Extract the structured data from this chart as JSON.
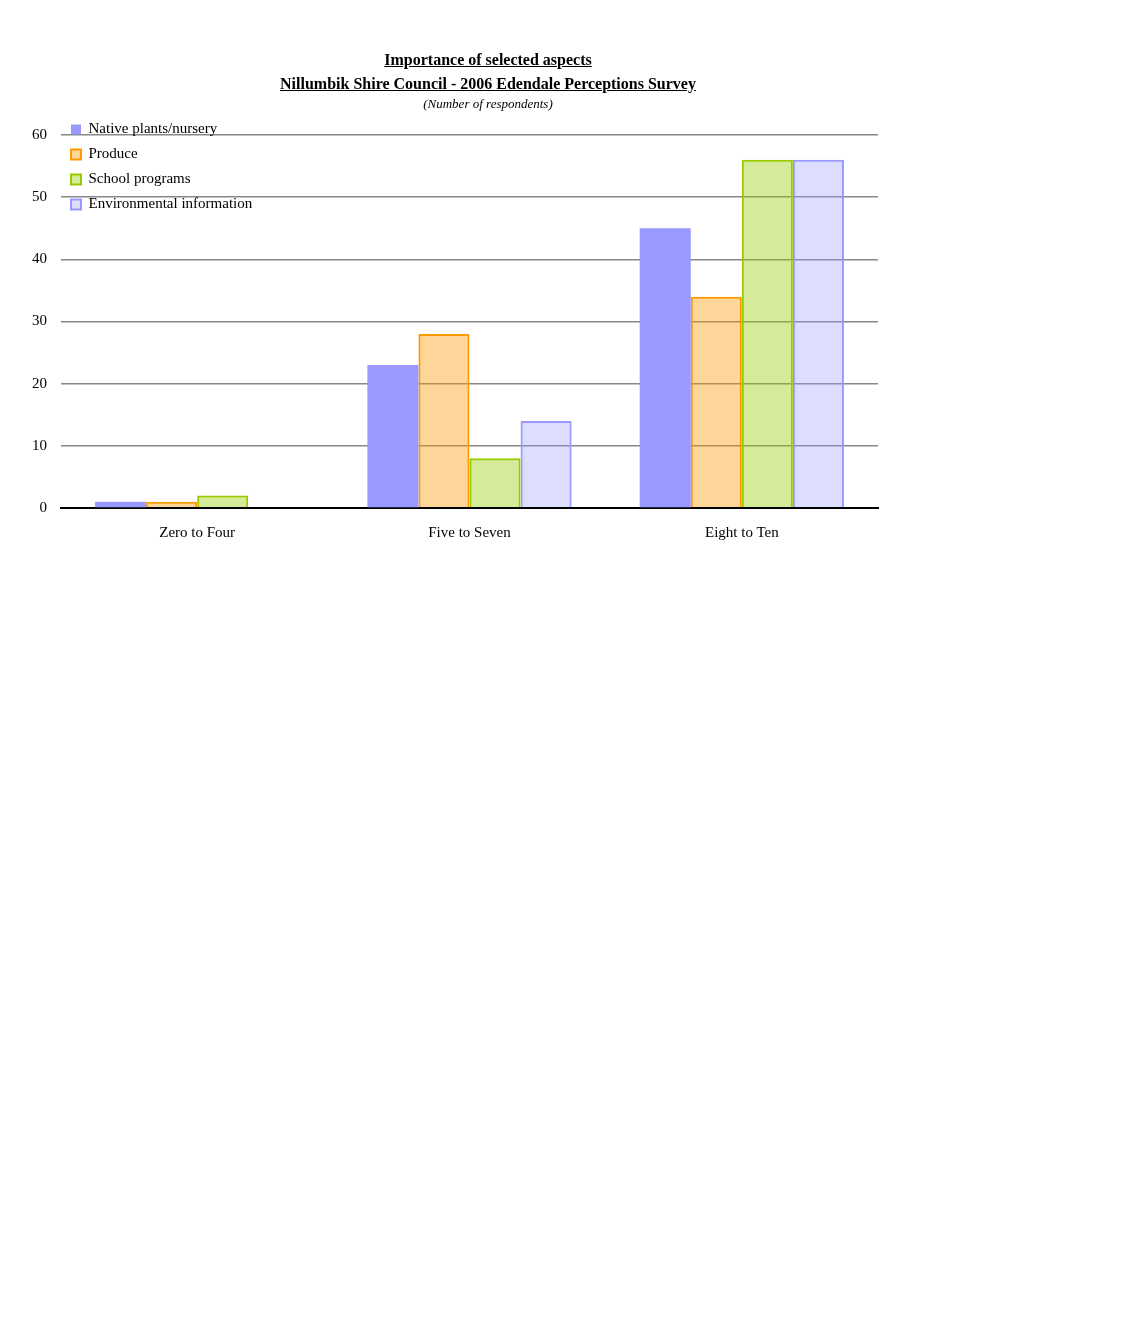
{
  "chart_data": {
    "type": "bar",
    "title": "Importance of selected aspects\nNillumbik Shire Council - 2006 Edendale Perceptions Survey",
    "subtitle": "(Number of respondents)",
    "categories": [
      "Zero to Four",
      "Five to Seven",
      "Eight to Ten"
    ],
    "series": [
      {
        "name": "Native plants/nursery",
        "color": "#9999ff",
        "values": [
          1,
          23,
          45
        ]
      },
      {
        "name": "Produce",
        "color": "#ff9900",
        "values": [
          1,
          28,
          34
        ]
      },
      {
        "name": "School programs",
        "color": "#99cc00",
        "values": [
          2,
          8,
          56
        ]
      },
      {
        "name": "Environmental information",
        "color": "#9999ff",
        "values": [
          0,
          14,
          56
        ]
      }
    ],
    "ylim": [
      0,
      60
    ],
    "yticks": [
      0,
      10,
      20,
      30,
      40,
      50,
      60
    ],
    "grid": "y",
    "legend": "top left"
  }
}
